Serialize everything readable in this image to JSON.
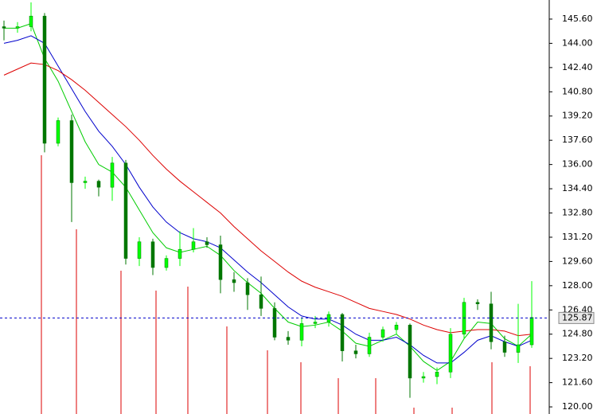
{
  "chart_data": {
    "type": "candlestick",
    "open": [
      145.1,
      145.0,
      145.1,
      145.8,
      137.4,
      138.9,
      134.8,
      134.9,
      134.5,
      136.1,
      129.8,
      130.9,
      129.2,
      129.8,
      130.4,
      130.9,
      130.7,
      128.4,
      128.2,
      127.4,
      126.5,
      124.6,
      124.4,
      125.5,
      125.6,
      126.1,
      123.7,
      123.5,
      124.6,
      125.1,
      125.4,
      121.9,
      122.0,
      122.3,
      124.8,
      126.9,
      126.8,
      124.3,
      123.6,
      124.1
    ],
    "high": [
      145.5,
      145.4,
      146.7,
      146.0,
      139.1,
      139.3,
      135.2,
      135.0,
      136.5,
      136.3,
      131.2,
      131.1,
      130.0,
      131.6,
      131.8,
      131.2,
      131.3,
      128.9,
      128.5,
      128.6,
      126.9,
      125.0,
      125.9,
      126.0,
      126.3,
      126.2,
      124.1,
      124.9,
      125.3,
      125.6,
      125.5,
      122.3,
      122.6,
      125.2,
      127.2,
      127.1,
      127.6,
      124.7,
      126.8,
      128.3
    ],
    "low": [
      144.2,
      144.7,
      144.8,
      136.8,
      137.2,
      132.2,
      134.4,
      133.9,
      133.6,
      129.4,
      129.3,
      128.7,
      129.0,
      129.3,
      130.2,
      130.5,
      127.5,
      127.6,
      126.4,
      126.0,
      124.4,
      124.1,
      124.0,
      125.2,
      125.3,
      123.0,
      123.2,
      123.3,
      124.3,
      124.8,
      120.6,
      121.6,
      121.5,
      121.9,
      124.5,
      126.4,
      123.8,
      123.3,
      122.9,
      123.9
    ],
    "close": [
      145.0,
      145.1,
      145.8,
      137.4,
      138.9,
      134.8,
      134.9,
      134.5,
      136.1,
      129.8,
      130.9,
      129.2,
      129.8,
      130.4,
      130.9,
      130.7,
      128.4,
      128.2,
      127.4,
      126.5,
      124.6,
      124.4,
      125.5,
      125.6,
      126.1,
      123.7,
      123.5,
      124.6,
      125.1,
      125.4,
      121.9,
      122.0,
      122.3,
      124.8,
      126.9,
      126.8,
      124.3,
      123.6,
      124.1,
      125.9
    ],
    "up_color": "#00ff00",
    "down_color": "#007700",
    "moving_averages": [
      {
        "color": "#00cc00",
        "values": [
          145.0,
          145.0,
          145.3,
          143.0,
          141.5,
          139.5,
          137.5,
          136.0,
          135.5,
          134.5,
          133.0,
          131.5,
          130.5,
          130.2,
          130.4,
          130.6,
          130.0,
          129.0,
          128.2,
          127.5,
          126.5,
          125.6,
          125.3,
          125.4,
          125.6,
          125.0,
          124.2,
          124.0,
          124.4,
          124.8,
          124.0,
          123.0,
          122.4,
          123.0,
          124.5,
          125.6,
          125.5,
          124.5,
          124.0,
          124.8
        ]
      },
      {
        "color": "#0000cc",
        "values": [
          144.0,
          144.2,
          144.5,
          144.0,
          142.5,
          141.0,
          139.5,
          138.2,
          137.2,
          136.0,
          134.5,
          133.2,
          132.2,
          131.5,
          131.1,
          130.9,
          130.5,
          129.7,
          128.9,
          128.2,
          127.4,
          126.6,
          126.0,
          125.8,
          125.8,
          125.4,
          124.8,
          124.4,
          124.4,
          124.6,
          124.1,
          123.4,
          122.9,
          122.9,
          123.6,
          124.4,
          124.7,
          124.3,
          124.0,
          124.4
        ]
      },
      {
        "color": "#dd0000",
        "values": [
          141.9,
          142.3,
          142.7,
          142.6,
          142.2,
          141.6,
          140.9,
          140.1,
          139.3,
          138.5,
          137.6,
          136.6,
          135.7,
          134.9,
          134.2,
          133.5,
          132.8,
          131.9,
          131.1,
          130.3,
          129.6,
          128.9,
          128.3,
          127.9,
          127.6,
          127.3,
          126.9,
          126.5,
          126.3,
          126.1,
          125.8,
          125.4,
          125.1,
          124.9,
          125.0,
          125.1,
          125.1,
          125.0,
          124.7,
          124.8
        ]
      }
    ],
    "current_price": 125.87,
    "ylim": [
      119.53,
      146.86
    ],
    "yticks": [
      {
        "value": 120.0,
        "label": "120.00"
      },
      {
        "value": 121.6,
        "label": "121.60"
      },
      {
        "value": 123.2,
        "label": "123.20"
      },
      {
        "value": 124.8,
        "label": "124.80"
      },
      {
        "value": 126.4,
        "label": "126.40"
      },
      {
        "value": 128.0,
        "label": "128.00"
      },
      {
        "value": 129.6,
        "label": "129.60"
      },
      {
        "value": 131.2,
        "label": "131.20"
      },
      {
        "value": 132.8,
        "label": "132.80"
      },
      {
        "value": 134.4,
        "label": "134.40"
      },
      {
        "value": 136.0,
        "label": "136.00"
      },
      {
        "value": 137.6,
        "label": "137.60"
      },
      {
        "value": 139.2,
        "label": "139.20"
      },
      {
        "value": 140.8,
        "label": "140.80"
      },
      {
        "value": 142.4,
        "label": "142.40"
      },
      {
        "value": 144.0,
        "label": "144.00"
      },
      {
        "value": 145.6,
        "label": "145.60"
      }
    ]
  }
}
